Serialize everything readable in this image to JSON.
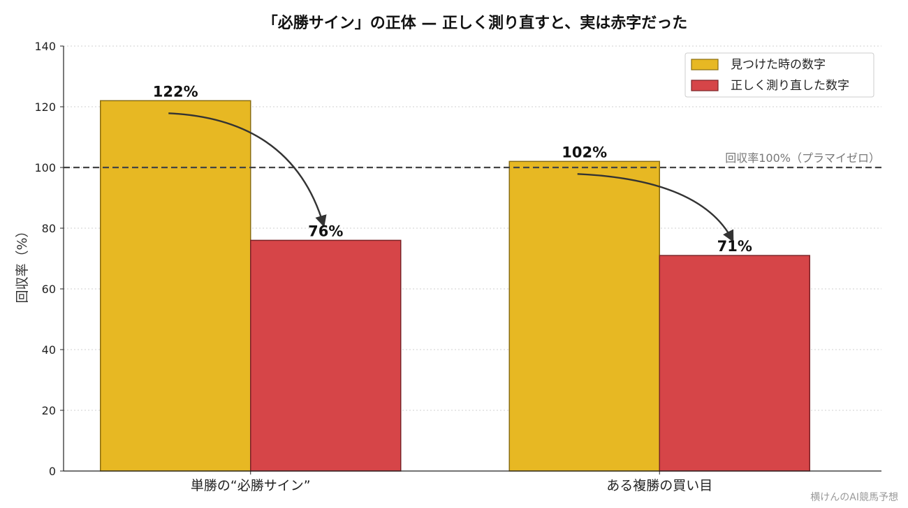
{
  "chart_data": {
    "type": "bar",
    "title": "「必勝サイン」の正体 — 正しく測り直すと、実は赤字だった",
    "xlabel": "",
    "ylabel": "回収率（%）",
    "categories": [
      "単勝の“必勝サイン”",
      "ある複勝の買い目"
    ],
    "series": [
      {
        "name": "見つけた時の数字",
        "values": [
          122,
          102
        ],
        "labels": [
          "122%",
          "102%"
        ],
        "color": "#E7B823",
        "edge": "#8A6D10"
      },
      {
        "name": "正しく測り直した数字",
        "values": [
          76,
          71
        ],
        "labels": [
          "76%",
          "71%"
        ],
        "color": "#D64548",
        "edge": "#7A2226"
      }
    ],
    "ylim": [
      0,
      140
    ],
    "yticks": [
      0,
      20,
      40,
      60,
      80,
      100,
      120,
      140
    ],
    "reference_line": {
      "value": 100,
      "label": "回収率100%（プラマイゼロ）"
    },
    "grid": "horizontal-dotted",
    "legend_position": "top-right",
    "credit": "横けんのAI競馬予想"
  }
}
